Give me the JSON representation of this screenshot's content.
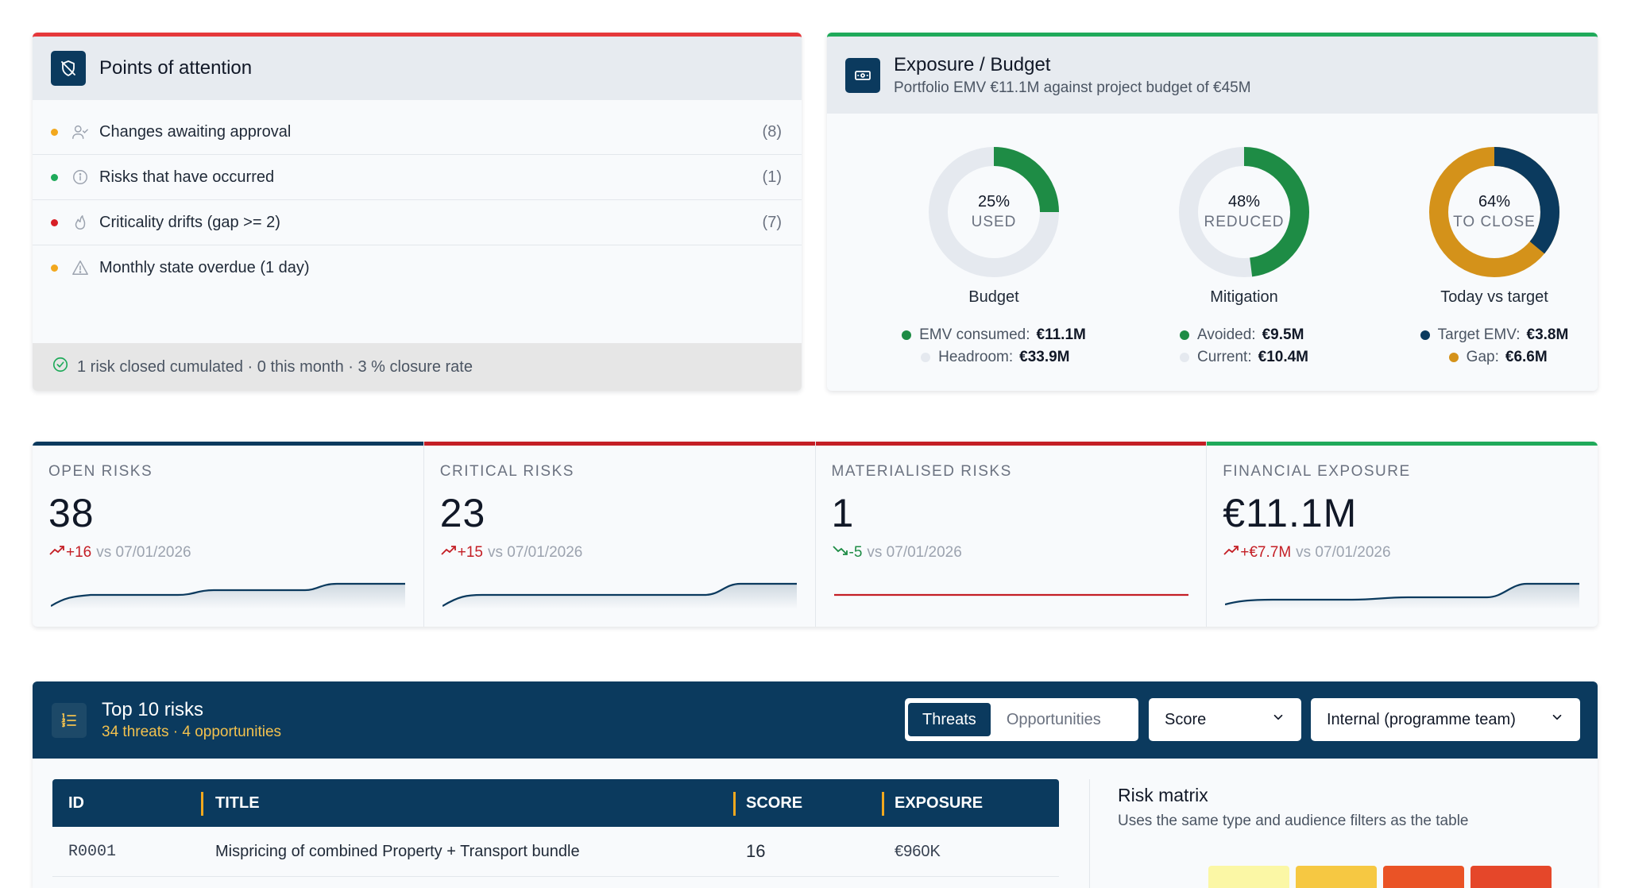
{
  "points_of_attention": {
    "title": "Points of attention",
    "items": [
      {
        "label": "Changes awaiting approval",
        "count": "(8)",
        "dot_color": "#f2a81e",
        "icon": "user-check-icon"
      },
      {
        "label": "Risks that have occurred",
        "count": "(1)",
        "dot_color": "#1faa5a",
        "icon": "info-icon"
      },
      {
        "label": "Criticality drifts (gap >= 2)",
        "count": "(7)",
        "dot_color": "#d71f26",
        "icon": "flame-icon"
      },
      {
        "label": "Monthly state overdue (1 day)",
        "count": "",
        "dot_color": "#f2a81e",
        "icon": "warning-icon"
      }
    ],
    "footer": "1 risk closed cumulated · 0 this month · 3 % closure rate"
  },
  "exposure": {
    "title": "Exposure / Budget",
    "subtitle": "Portfolio EMV €11.1M against project budget of €45M",
    "donuts": [
      {
        "pct": "25%",
        "label": "USED",
        "caption": "Budget",
        "fraction": 0.25,
        "legend": [
          {
            "name": "EMV consumed:",
            "value": "€11.1M",
            "color": "#1e8c45"
          },
          {
            "name": "Headroom:",
            "value": "€33.9M",
            "color": "#e5e9ef"
          }
        ]
      },
      {
        "pct": "48%",
        "label": "REDUCED",
        "caption": "Mitigation",
        "fraction": 0.48,
        "legend": [
          {
            "name": "Avoided:",
            "value": "€9.5M",
            "color": "#1e8c45"
          },
          {
            "name": "Current:",
            "value": "€10.4M",
            "color": "#e5e9ef"
          }
        ]
      },
      {
        "pct": "64%",
        "label": "TO CLOSE",
        "caption": "Today vs target",
        "fraction": 0.36,
        "legend": [
          {
            "name": "Target EMV:",
            "value": "€3.8M",
            "color": "#0b3a5e"
          },
          {
            "name": "Gap:",
            "value": "€6.6M",
            "color": "#d4921a"
          }
        ]
      }
    ]
  },
  "kpis": [
    {
      "label": "OPEN RISKS",
      "value": "38",
      "delta": "+16",
      "vs": "vs 07/01/2026",
      "trend": "up",
      "top_color": "#0b3a5e"
    },
    {
      "label": "CRITICAL RISKS",
      "value": "23",
      "delta": "+15",
      "vs": "vs 07/01/2026",
      "trend": "up",
      "top_color": "#c41e25"
    },
    {
      "label": "MATERIALISED RISKS",
      "value": "1",
      "delta": "-5",
      "vs": "vs 07/01/2026",
      "trend": "down",
      "top_color": "#c41e25"
    },
    {
      "label": "FINANCIAL EXPOSURE",
      "value": "€11.1M",
      "delta": "+€7.7M",
      "vs": "vs 07/01/2026",
      "trend": "up",
      "top_color": "#1faa5a"
    }
  ],
  "top10": {
    "title": "Top 10 risks",
    "subtitle": "34 threats · 4 opportunities",
    "segment": {
      "threats": "Threats",
      "opportunities": "Opportunities",
      "active": "Threats"
    },
    "score_select": "Score",
    "audience_select": "Internal (programme team)",
    "table": {
      "headers": {
        "id": "ID",
        "title": "TITLE",
        "score": "SCORE",
        "exposure": "EXPOSURE"
      },
      "rows": [
        {
          "id": "R0001",
          "title": "Mispricing of combined Property + Transport bundle",
          "score": "16",
          "exposure": "€960K"
        }
      ]
    },
    "matrix": {
      "title": "Risk matrix",
      "subtitle": "Uses the same type and audience filters as the table",
      "cell_colors": [
        "#fbf7a5",
        "#f6c842",
        "#ea5326",
        "#e5472a"
      ]
    }
  },
  "colors": {
    "navy": "#0b3a5e",
    "red": "#e5383b",
    "green": "#1faa5a",
    "amber": "#f2a81e"
  }
}
